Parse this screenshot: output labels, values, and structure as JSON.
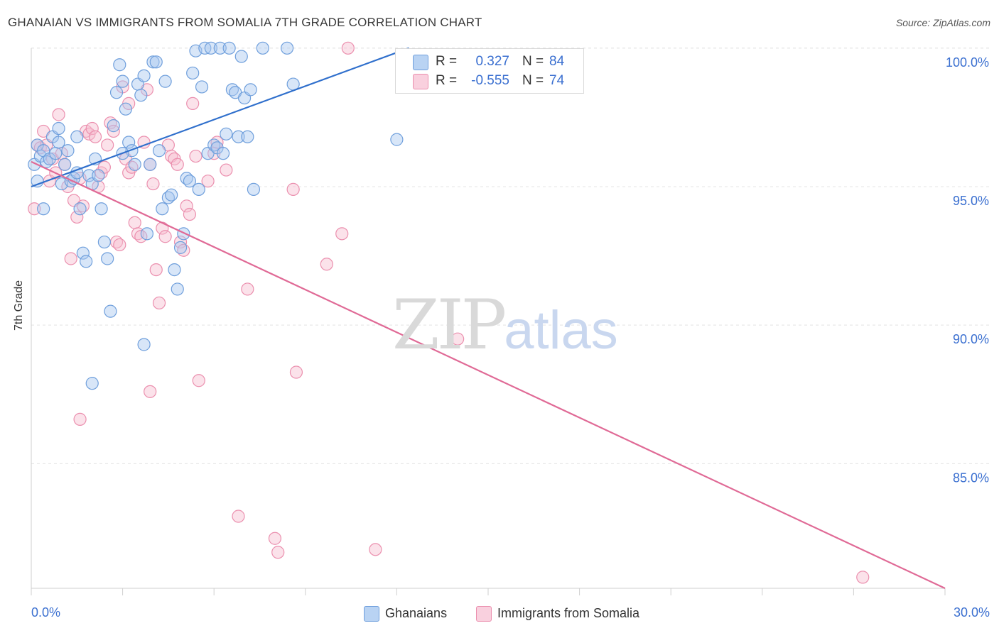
{
  "header": {
    "title": "GHANAIAN VS IMMIGRANTS FROM SOMALIA 7TH GRADE CORRELATION CHART",
    "source": "Source: ZipAtlas.com"
  },
  "watermark": {
    "zip": "ZIP",
    "atlas": "atlas"
  },
  "legend_top": {
    "rows": [
      {
        "r_label": "R =",
        "r_value": "0.327",
        "n_label": "N =",
        "n_value": "84"
      },
      {
        "r_label": "R =",
        "r_value": "-0.555",
        "n_label": "N =",
        "n_value": "74"
      }
    ]
  },
  "legend_bottom": {
    "items": [
      {
        "label": "Ghanaians"
      },
      {
        "label": "Immigrants from Somalia"
      }
    ]
  },
  "colors": {
    "blue_fill": "#a9c8f0",
    "blue_stroke": "#6f9fdc",
    "blue_line": "#2f6fcc",
    "pink_fill": "#f6bfd1",
    "pink_stroke": "#eb8fae",
    "pink_line": "#e06a96",
    "tick_text": "#3a6fd0",
    "grid": "#e4e4e4"
  },
  "chart_data": {
    "type": "scatter",
    "title": "GHANAIAN VS IMMIGRANTS FROM SOMALIA 7TH GRADE CORRELATION CHART",
    "xlabel": "",
    "ylabel": "7th Grade",
    "xlim": [
      0,
      30
    ],
    "ylim": [
      80.5,
      100.2
    ],
    "x_tick_labels": [
      "0.0%",
      "30.0%"
    ],
    "y_ticks": [
      85,
      90,
      95,
      100
    ],
    "y_tick_labels": [
      "85.0%",
      "90.0%",
      "95.0%",
      "100.0%"
    ],
    "grid": true,
    "legend_placement": "bottom",
    "series": [
      {
        "name": "Ghanaians",
        "color": "blue",
        "r": 0.327,
        "n": 84,
        "trend": {
          "x": [
            0,
            12.4
          ],
          "y": [
            95.0,
            100.0
          ]
        },
        "points": [
          [
            0.1,
            95.8
          ],
          [
            0.2,
            96.5
          ],
          [
            0.3,
            96.1
          ],
          [
            0.4,
            96.3
          ],
          [
            0.5,
            95.9
          ],
          [
            0.6,
            96.0
          ],
          [
            0.7,
            96.8
          ],
          [
            0.8,
            96.2
          ],
          [
            0.9,
            97.1
          ],
          [
            1.0,
            95.1
          ],
          [
            1.1,
            95.8
          ],
          [
            1.2,
            96.3
          ],
          [
            1.3,
            95.2
          ],
          [
            1.4,
            95.3
          ],
          [
            1.5,
            96.8
          ],
          [
            1.6,
            94.2
          ],
          [
            1.7,
            92.6
          ],
          [
            1.8,
            92.3
          ],
          [
            1.9,
            95.4
          ],
          [
            2.0,
            95.1
          ],
          [
            2.1,
            96.0
          ],
          [
            2.2,
            95.4
          ],
          [
            2.3,
            94.2
          ],
          [
            2.4,
            93.0
          ],
          [
            2.5,
            92.4
          ],
          [
            2.6,
            90.5
          ],
          [
            2.7,
            97.2
          ],
          [
            2.8,
            98.4
          ],
          [
            2.9,
            99.4
          ],
          [
            3.0,
            98.8
          ],
          [
            3.1,
            97.8
          ],
          [
            3.2,
            96.6
          ],
          [
            3.3,
            96.3
          ],
          [
            3.4,
            95.8
          ],
          [
            3.5,
            98.7
          ],
          [
            3.6,
            98.3
          ],
          [
            3.7,
            99.0
          ],
          [
            3.8,
            93.3
          ],
          [
            3.9,
            95.8
          ],
          [
            4.0,
            99.5
          ],
          [
            4.1,
            99.5
          ],
          [
            4.2,
            96.3
          ],
          [
            4.3,
            94.2
          ],
          [
            4.4,
            98.8
          ],
          [
            4.5,
            94.6
          ],
          [
            4.6,
            94.7
          ],
          [
            4.7,
            92.0
          ],
          [
            4.8,
            91.3
          ],
          [
            4.9,
            92.8
          ],
          [
            5.0,
            93.3
          ],
          [
            5.1,
            95.3
          ],
          [
            5.2,
            95.2
          ],
          [
            5.3,
            99.1
          ],
          [
            5.4,
            99.9
          ],
          [
            5.5,
            94.9
          ],
          [
            5.6,
            98.6
          ],
          [
            5.7,
            100.0
          ],
          [
            5.8,
            96.2
          ],
          [
            5.9,
            100.0
          ],
          [
            6.0,
            96.5
          ],
          [
            6.1,
            96.4
          ],
          [
            6.2,
            100.0
          ],
          [
            6.3,
            96.2
          ],
          [
            6.4,
            96.9
          ],
          [
            6.5,
            100.0
          ],
          [
            6.6,
            98.5
          ],
          [
            6.7,
            98.4
          ],
          [
            6.8,
            96.8
          ],
          [
            6.9,
            99.7
          ],
          [
            7.0,
            98.2
          ],
          [
            7.1,
            96.8
          ],
          [
            7.2,
            98.5
          ],
          [
            7.3,
            94.9
          ],
          [
            7.6,
            100.0
          ],
          [
            8.4,
            100.0
          ],
          [
            8.6,
            98.7
          ],
          [
            2.0,
            87.9
          ],
          [
            3.7,
            89.3
          ],
          [
            12.0,
            96.7
          ],
          [
            0.4,
            94.2
          ],
          [
            0.9,
            96.6
          ],
          [
            1.5,
            95.5
          ],
          [
            0.2,
            95.2
          ],
          [
            3.0,
            96.2
          ]
        ]
      },
      {
        "name": "Immigrants from Somalia",
        "color": "pink",
        "r": -0.555,
        "n": 74,
        "trend": {
          "x": [
            0,
            30
          ],
          "y": [
            95.9,
            80.5
          ]
        },
        "points": [
          [
            0.1,
            94.2
          ],
          [
            0.2,
            96.5
          ],
          [
            0.3,
            96.4
          ],
          [
            0.4,
            97.0
          ],
          [
            0.5,
            96.5
          ],
          [
            0.6,
            95.2
          ],
          [
            0.7,
            96.0
          ],
          [
            0.8,
            95.5
          ],
          [
            0.9,
            97.6
          ],
          [
            1.0,
            96.2
          ],
          [
            1.1,
            95.8
          ],
          [
            1.2,
            95.0
          ],
          [
            1.3,
            92.4
          ],
          [
            1.4,
            94.5
          ],
          [
            1.5,
            93.9
          ],
          [
            1.6,
            95.3
          ],
          [
            1.7,
            94.3
          ],
          [
            1.8,
            97.0
          ],
          [
            1.9,
            96.9
          ],
          [
            2.0,
            97.1
          ],
          [
            2.1,
            96.8
          ],
          [
            2.2,
            95.0
          ],
          [
            2.3,
            95.5
          ],
          [
            2.4,
            95.7
          ],
          [
            2.5,
            96.5
          ],
          [
            2.6,
            97.3
          ],
          [
            2.7,
            97.0
          ],
          [
            2.8,
            93.0
          ],
          [
            2.9,
            92.9
          ],
          [
            3.0,
            98.6
          ],
          [
            3.1,
            96.0
          ],
          [
            3.2,
            95.5
          ],
          [
            3.3,
            95.7
          ],
          [
            3.4,
            93.7
          ],
          [
            3.5,
            93.3
          ],
          [
            3.6,
            93.2
          ],
          [
            3.7,
            96.6
          ],
          [
            3.8,
            98.5
          ],
          [
            3.9,
            95.8
          ],
          [
            4.0,
            95.1
          ],
          [
            4.1,
            92.0
          ],
          [
            4.2,
            90.8
          ],
          [
            4.3,
            93.5
          ],
          [
            4.4,
            93.2
          ],
          [
            4.5,
            96.5
          ],
          [
            4.6,
            96.1
          ],
          [
            4.7,
            96.0
          ],
          [
            4.8,
            95.8
          ],
          [
            4.9,
            93.0
          ],
          [
            5.0,
            92.7
          ],
          [
            5.1,
            94.3
          ],
          [
            5.2,
            94.0
          ],
          [
            5.3,
            98.0
          ],
          [
            5.4,
            96.1
          ],
          [
            5.5,
            88.0
          ],
          [
            5.8,
            95.2
          ],
          [
            6.1,
            96.6
          ],
          [
            6.4,
            95.6
          ],
          [
            6.0,
            96.2
          ],
          [
            3.2,
            98.0
          ],
          [
            3.9,
            87.6
          ],
          [
            1.6,
            86.6
          ],
          [
            6.8,
            83.1
          ],
          [
            7.1,
            91.3
          ],
          [
            8.0,
            82.3
          ],
          [
            8.1,
            81.8
          ],
          [
            8.6,
            94.9
          ],
          [
            8.7,
            88.3
          ],
          [
            9.7,
            92.2
          ],
          [
            10.2,
            93.3
          ],
          [
            10.4,
            100.0
          ],
          [
            11.3,
            81.9
          ],
          [
            14.0,
            89.5
          ],
          [
            27.3,
            80.9
          ]
        ]
      }
    ]
  }
}
